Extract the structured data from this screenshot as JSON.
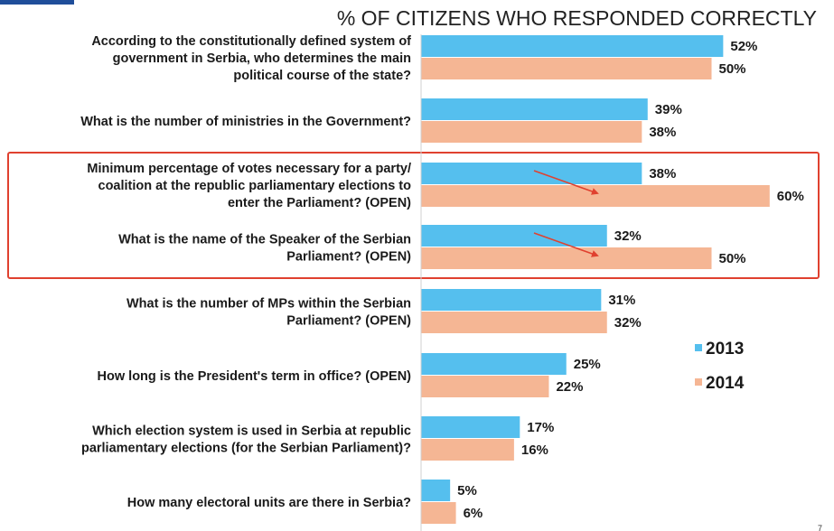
{
  "page_number": "7",
  "chart_data": {
    "type": "bar",
    "orientation": "horizontal",
    "title": "% OF CITIZENS WHO RESPONDED CORRECTLY",
    "xlim": [
      0,
      70
    ],
    "grid": false,
    "legend_position": "right",
    "categories": [
      "According to the constitutionally defined system of government in Serbia, who determines the main political course of the state?",
      "What is the number of ministries in the Government?",
      "Minimum percentage of votes necessary for a party/ coalition at the republic parliamentary elections to enter the Parliament? (OPEN)",
      "What is the name of the Speaker of the Serbian Parliament? (OPEN)",
      "What is the number of MPs within the Serbian Parliament? (OPEN)",
      "How long is the President's term in office? (OPEN)",
      "Which election system is used in Serbia at republic parliamentary elections (for the Serbian Parliament)?",
      "How many electoral units are there in Serbia?"
    ],
    "category_lines": [
      [
        "According to the constitutionally defined system of",
        "government in Serbia, who determines the main",
        "political course of the state?"
      ],
      [
        "What is the number of ministries in the Government?"
      ],
      [
        "Minimum percentage of votes necessary for a party/",
        "coalition at the republic parliamentary elections to",
        "enter the Parliament? (OPEN)"
      ],
      [
        "What is the name of the Speaker of the Serbian",
        "Parliament? (OPEN)"
      ],
      [
        "What is the number of MPs within the Serbian",
        "Parliament? (OPEN)"
      ],
      [
        "How long is the President's term in office? (OPEN)"
      ],
      [
        "Which election system is used in Serbia at republic",
        "parliamentary elections (for the Serbian Parliament)?"
      ],
      [
        "How many electoral units are there in Serbia?"
      ]
    ],
    "series": [
      {
        "name": "2013",
        "color": "#55bfee",
        "values": [
          52,
          39,
          38,
          32,
          31,
          25,
          17,
          5
        ],
        "labels": [
          "52%",
          "39%",
          "38%",
          "32%",
          "31%",
          "25%",
          "17%",
          "5%"
        ]
      },
      {
        "name": "2014",
        "color": "#f5b694",
        "values": [
          50,
          38,
          60,
          50,
          32,
          22,
          16,
          6
        ],
        "labels": [
          "50%",
          "38%",
          "60%",
          "50%",
          "32%",
          "22%",
          "16%",
          "6%"
        ]
      }
    ],
    "highlight": {
      "categories": [
        2,
        3
      ],
      "color": "#e0412f"
    },
    "arrows": {
      "categories": [
        2,
        3
      ],
      "color": "#e0412f"
    }
  }
}
